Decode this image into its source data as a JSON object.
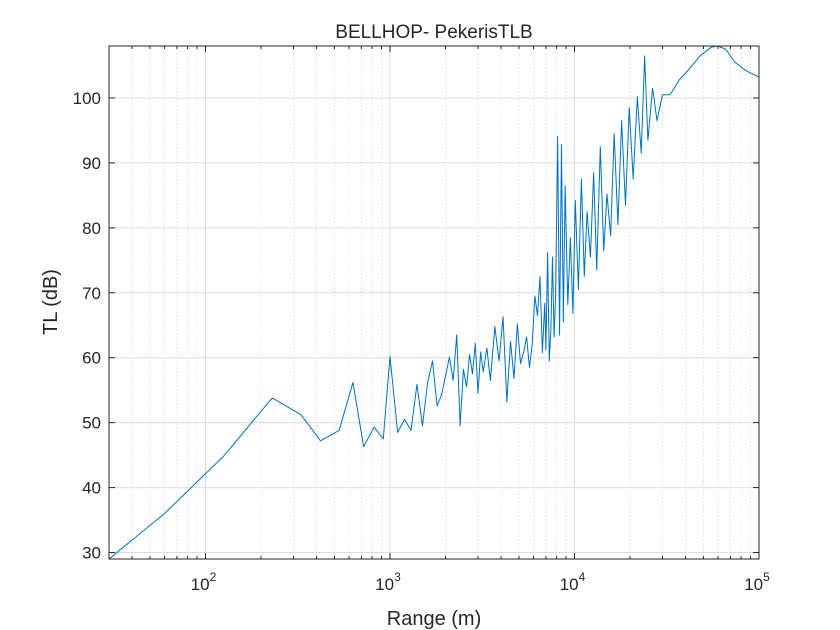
{
  "chart_data": {
    "type": "line",
    "title": "BELLHOP- PekerisTLB",
    "xlabel": "Range (m)",
    "ylabel": "TL (dB)",
    "xscale": "log",
    "xlim": [
      30,
      100000
    ],
    "ylim": [
      29,
      108
    ],
    "grid": true,
    "minor_grid_x": true,
    "line_color": "#0072bd",
    "x_ticks": [
      {
        "base": "10",
        "exp": "2",
        "value": 100
      },
      {
        "base": "10",
        "exp": "3",
        "value": 1000
      },
      {
        "base": "10",
        "exp": "4",
        "value": 10000
      },
      {
        "base": "10",
        "exp": "5",
        "value": 100000
      }
    ],
    "y_ticks": [
      30,
      40,
      50,
      60,
      70,
      80,
      90,
      100
    ],
    "series": [
      {
        "x": [
          30,
          60,
          125,
          230,
          330,
          420,
          530,
          630,
          720,
          820,
          920,
          1000,
          1100,
          1200,
          1300,
          1400,
          1500,
          1600,
          1700,
          1800,
          1900,
          2000,
          2100,
          2200,
          2300,
          2400,
          2500,
          2600,
          2700,
          2800,
          2900,
          3000,
          3100,
          3200,
          3350,
          3500,
          3700,
          3900,
          4100,
          4300,
          4500,
          4700,
          4900,
          5100,
          5300,
          5500,
          5700,
          5900,
          6100,
          6300,
          6500,
          6700,
          6900,
          7000,
          7150,
          7300,
          7450,
          7600,
          7750,
          7900,
          8100,
          8300,
          8500,
          8700,
          8900,
          9200,
          9500,
          9800,
          10100,
          10500,
          10900,
          11300,
          11700,
          12200,
          12700,
          13200,
          13800,
          14400,
          15000,
          15700,
          16400,
          17200,
          18000,
          18900,
          19800,
          20800,
          21900,
          23000,
          24000,
          25000,
          26500,
          28000,
          30000,
          33000,
          37000,
          42000,
          48000,
          55000,
          60000,
          66000,
          74000,
          85000,
          100000
        ],
        "y": [
          29,
          36,
          44.8,
          53.8,
          51.2,
          47.2,
          48.8,
          56.2,
          46.3,
          49.3,
          47.5,
          60.2,
          48.5,
          50.5,
          48.8,
          55.9,
          49.5,
          56.2,
          59.5,
          52.6,
          54.2,
          57.2,
          60.1,
          56.5,
          63.5,
          49.5,
          58.2,
          55.5,
          60.5,
          57.5,
          62.2,
          54.5,
          60.9,
          57.8,
          61.5,
          56.5,
          64.8,
          59.5,
          66.3,
          53.2,
          62.5,
          56.8,
          65.2,
          59.1,
          60.8,
          63.2,
          58.5,
          62.1,
          69.5,
          66.5,
          72.5,
          60.8,
          68.4,
          61.2,
          76.2,
          59.5,
          64.5,
          75.5,
          63.2,
          69.5,
          94.1,
          63.5,
          92.8,
          65.5,
          86.5,
          68.2,
          78.5,
          66.8,
          84.2,
          70.5,
          87.5,
          72.5,
          82.5,
          75.5,
          88.5,
          73.5,
          92.5,
          76.5,
          85.2,
          78.8,
          94.5,
          80.5,
          96.5,
          83.5,
          98.5,
          87.5,
          100.2,
          91.5,
          106.5,
          93.5,
          101.5,
          96.5,
          100.5,
          100.5,
          102.8,
          104.5,
          106.5,
          107.8,
          108.2,
          107.5,
          105.5,
          104.2,
          103.2
        ]
      }
    ]
  }
}
